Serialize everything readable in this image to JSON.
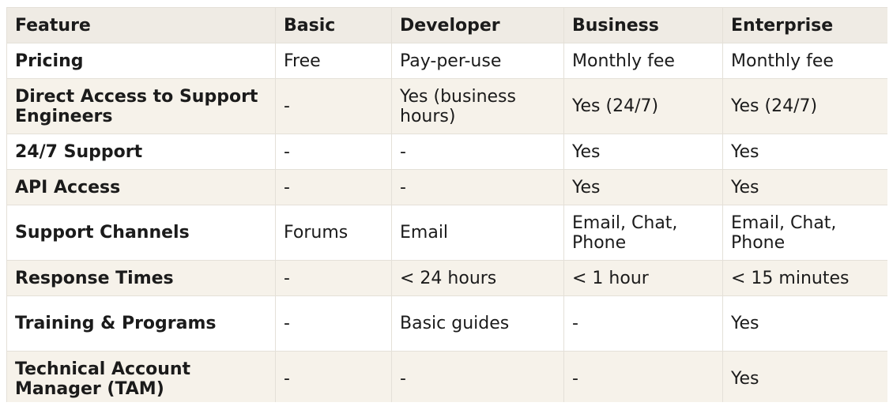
{
  "header": [
    "Feature",
    "Basic",
    "Developer",
    "Business",
    "Enterprise"
  ],
  "rows": [
    [
      "Pricing",
      "Free",
      "Pay-per-use",
      "Monthly fee",
      "Monthly fee"
    ],
    [
      "Direct Access to Support Engineers",
      "-",
      "Yes (business hours)",
      "Yes (24/7)",
      "Yes (24/7)"
    ],
    [
      "24/7 Support",
      "-",
      "-",
      "Yes",
      "Yes"
    ],
    [
      "API Access",
      "-",
      "-",
      "Yes",
      "Yes"
    ],
    [
      "Support Channels",
      "Forums",
      "Email",
      "Email, Chat, Phone",
      "Email, Chat, Phone"
    ],
    [
      "Response Times",
      "-",
      "< 24 hours",
      "< 1 hour",
      "< 15 minutes"
    ],
    [
      "Training & Programs",
      "-",
      "Basic guides",
      "-",
      "Yes"
    ],
    [
      "Technical Account Manager (TAM)",
      "-",
      "-",
      "-",
      "Yes"
    ]
  ],
  "colors": {
    "header_bg": "#efebe4",
    "row_alt_bg": "#f6f2ea",
    "row_bg": "#ffffff",
    "border": "#e4e0d8",
    "text": "#1b1b1b"
  }
}
